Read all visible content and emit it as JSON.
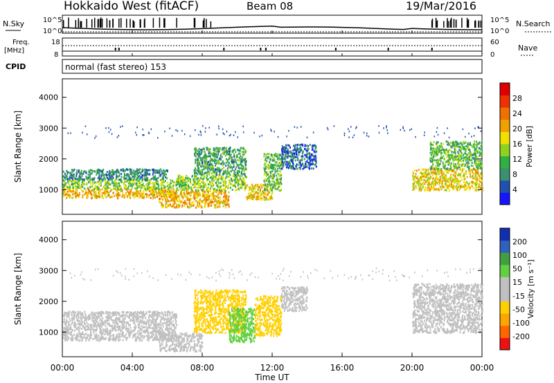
{
  "header": {
    "title": "Hokkaido West (fitACF)",
    "beam": "Beam 08",
    "date": "19/Mar/2016"
  },
  "summary_panels": {
    "left_labels": [
      "N.Sky",
      "Freq.",
      "[MHz]",
      "CPID"
    ],
    "right_labels": [
      "N.Search",
      "Nave"
    ],
    "noise_axis": [
      "10^5",
      "10^0"
    ],
    "noise_axis_right": [
      "10^5",
      "10^0"
    ],
    "freq_axis": [
      "18",
      "8"
    ],
    "nave_axis": [
      "60",
      "0"
    ],
    "cpid_text": "normal (fast stereo) 153"
  },
  "colors": {
    "power": [
      "#1414ff",
      "#2050b0",
      "#3a9070",
      "#30b040",
      "#90d020",
      "#f0e000",
      "#f0a000",
      "#f07000",
      "#f03000",
      "#e00000"
    ],
    "velocity": [
      "#ee1111",
      "#ff6600",
      "#ffa500",
      "#ffd000",
      "#c0c0c0",
      "#c0c0c0",
      "#60d040",
      "#40a040",
      "#3060c0",
      "#1030b0"
    ]
  },
  "chart_data": [
    {
      "type": "heatmap",
      "name": "power",
      "ylabel": "Slant Range [km]",
      "yticks": [
        "1000",
        "2000",
        "3000",
        "4000"
      ],
      "ylim": [
        200,
        4600
      ],
      "xlim": [
        0,
        24
      ],
      "colorbar_label": "Power [dB]",
      "colorbar_ticks": [
        "4",
        "8",
        "12",
        "16",
        "20",
        "24",
        "28"
      ],
      "zlim": [
        0,
        32
      ],
      "echo_bands": [
        {
          "t0": 0.0,
          "t1": 6.5,
          "r0": 750,
          "r1": 1050,
          "value": 20
        },
        {
          "t0": 0.0,
          "t1": 6.5,
          "r0": 1050,
          "r1": 1350,
          "value": 14
        },
        {
          "t0": 0.0,
          "t1": 6.0,
          "r0": 1350,
          "r1": 1700,
          "value": 8
        },
        {
          "t0": 5.5,
          "t1": 9.5,
          "r0": 450,
          "r1": 1000,
          "value": 20
        },
        {
          "t0": 6.5,
          "t1": 10.5,
          "r0": 1000,
          "r1": 1500,
          "value": 14
        },
        {
          "t0": 7.5,
          "t1": 10.5,
          "r0": 1500,
          "r1": 2400,
          "value": 10
        },
        {
          "t0": 10.5,
          "t1": 12.0,
          "r0": 700,
          "r1": 1200,
          "value": 18
        },
        {
          "t0": 11.5,
          "t1": 12.5,
          "r0": 1000,
          "r1": 2200,
          "value": 12
        },
        {
          "t0": 12.5,
          "t1": 14.5,
          "r0": 1700,
          "r1": 2500,
          "value": 6
        },
        {
          "t0": 20.0,
          "t1": 24.0,
          "r0": 1000,
          "r1": 1700,
          "value": 18
        },
        {
          "t0": 21.0,
          "t1": 24.0,
          "r0": 1700,
          "r1": 2600,
          "value": 12
        }
      ]
    },
    {
      "type": "heatmap",
      "name": "velocity",
      "ylabel": "Slant Range [km]",
      "yticks": [
        "1000",
        "2000",
        "3000",
        "4000"
      ],
      "ylim": [
        200,
        4600
      ],
      "xlim": [
        0,
        24
      ],
      "xlabel": "Time UT",
      "xticks": [
        "00:00",
        "04:00",
        "08:00",
        "12:00",
        "16:00",
        "20:00",
        "00:00"
      ],
      "colorbar_label": "Velocity [m s⁻¹]",
      "colorbar_ticks": [
        "-200",
        "-100",
        "-50",
        "-15",
        "15",
        "50",
        "100",
        "200"
      ],
      "echo_bands": [
        {
          "t0": 0.0,
          "t1": 6.5,
          "r0": 750,
          "r1": 1700,
          "value": 0
        },
        {
          "t0": 5.5,
          "t1": 8.0,
          "r0": 400,
          "r1": 1000,
          "value": 0
        },
        {
          "t0": 7.5,
          "t1": 10.5,
          "r0": 1000,
          "r1": 2400,
          "value": -40
        },
        {
          "t0": 9.5,
          "t1": 11.0,
          "r0": 700,
          "r1": 1800,
          "value": 30
        },
        {
          "t0": 11.0,
          "t1": 12.5,
          "r0": 900,
          "r1": 2200,
          "value": -40
        },
        {
          "t0": 12.5,
          "t1": 14.0,
          "r0": 1700,
          "r1": 2500,
          "value": 0
        },
        {
          "t0": 20.0,
          "t1": 24.0,
          "r0": 1000,
          "r1": 2600,
          "value": 0
        }
      ]
    }
  ]
}
